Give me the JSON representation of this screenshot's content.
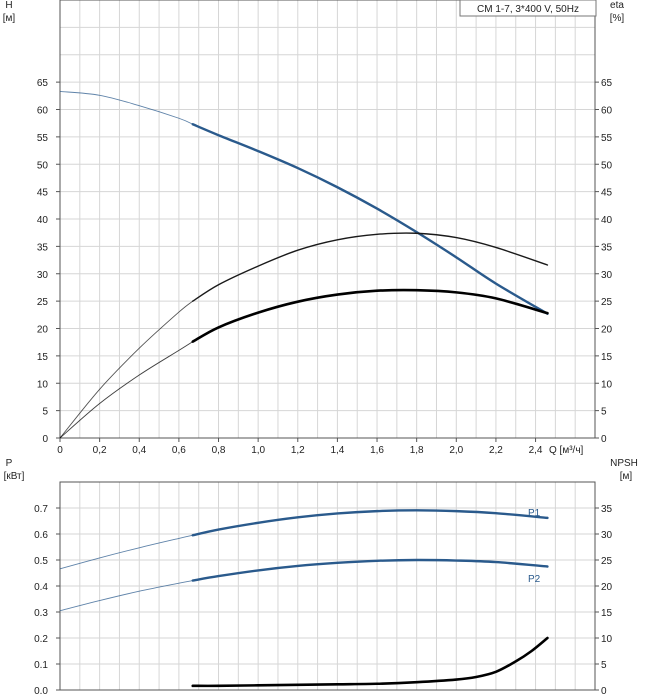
{
  "chart_data": [
    {
      "type": "line",
      "title": "CM 1-7, 3*400 V, 50Hz",
      "xlabel": "Q [м³/ч]",
      "ylabel": "H [м]",
      "y2label": "eta [%]",
      "ylabel_line1": "H",
      "ylabel_line2": "[м]",
      "y2label_line1": "eta",
      "y2label_line2": "[%]",
      "xlim": [
        0,
        2.7
      ],
      "ylim": [
        0,
        80
      ],
      "y2lim": [
        0,
        80
      ],
      "xticks": [
        "0",
        "0,2",
        "0,4",
        "0,6",
        "0,8",
        "1,0",
        "1,2",
        "1,4",
        "1,6",
        "1,8",
        "2,0",
        "2,2",
        "2,4"
      ],
      "yticks": [
        "0",
        "5",
        "10",
        "15",
        "20",
        "25",
        "30",
        "35",
        "40",
        "45",
        "50",
        "55",
        "60",
        "65"
      ],
      "y2ticks": [
        "0",
        "5",
        "10",
        "15",
        "20",
        "25",
        "30",
        "35",
        "40",
        "45",
        "50",
        "55",
        "60",
        "65"
      ],
      "grid": true,
      "series": [
        {
          "name": "H",
          "axis": "left",
          "color": "#2a5a8c",
          "x": [
            0,
            0.2,
            0.4,
            0.6,
            0.67,
            0.8,
            1.0,
            1.2,
            1.4,
            1.6,
            1.8,
            2.0,
            2.2,
            2.46
          ],
          "values": [
            63.3,
            62.6,
            60.7,
            58.4,
            57.3,
            55.3,
            52.4,
            49.3,
            45.8,
            41.9,
            37.6,
            33.0,
            28.2,
            22.7
          ],
          "operating_from": 0.67
        },
        {
          "name": "eta",
          "axis": "right",
          "color": "#1a1a1a",
          "x": [
            0,
            0.2,
            0.4,
            0.6,
            0.67,
            0.8,
            1.0,
            1.2,
            1.4,
            1.6,
            1.8,
            2.0,
            2.2,
            2.46
          ],
          "values": [
            0,
            8.9,
            16.4,
            23.0,
            25.0,
            28.0,
            31.4,
            34.3,
            36.2,
            37.2,
            37.4,
            36.6,
            34.8,
            31.6
          ],
          "operating_from": 0.67
        },
        {
          "name": "eta_total",
          "axis": "right",
          "color": "#000000",
          "x": [
            0,
            0.2,
            0.4,
            0.6,
            0.67,
            0.8,
            1.0,
            1.2,
            1.4,
            1.6,
            1.8,
            2.0,
            2.2,
            2.46
          ],
          "values": [
            0,
            6.3,
            11.5,
            16.0,
            17.6,
            20.2,
            22.9,
            24.9,
            26.2,
            26.9,
            27.0,
            26.6,
            25.5,
            22.8
          ],
          "operating_from": 0.67,
          "bold": true
        }
      ]
    },
    {
      "type": "line",
      "title": "",
      "xlabel": "",
      "ylabel": "P [кВт]",
      "y2label": "NPSH [м]",
      "ylabel_line1": "P",
      "ylabel_line2": "[кВт]",
      "y2label_line1": "NPSH",
      "y2label_line2": "[м]",
      "xlim": [
        0,
        2.7
      ],
      "ylim": [
        0,
        0.8
      ],
      "y2lim": [
        0,
        40
      ],
      "yticks": [
        "0.0",
        "0.1",
        "0.2",
        "0.3",
        "0.4",
        "0.5",
        "0.6",
        "0.7"
      ],
      "y2ticks": [
        "0",
        "5",
        "10",
        "15",
        "20",
        "25",
        "30",
        "35"
      ],
      "grid": true,
      "series": [
        {
          "name": "P1",
          "label": "P1",
          "axis": "left",
          "color": "#2a5a8c",
          "x": [
            0,
            0.2,
            0.4,
            0.6,
            0.67,
            0.8,
            1.0,
            1.2,
            1.4,
            1.6,
            1.8,
            2.0,
            2.2,
            2.46
          ],
          "values": [
            0.466,
            0.508,
            0.547,
            0.583,
            0.595,
            0.617,
            0.643,
            0.664,
            0.679,
            0.688,
            0.691,
            0.688,
            0.68,
            0.662
          ],
          "operating_from": 0.67
        },
        {
          "name": "P2",
          "label": "P2",
          "axis": "left",
          "color": "#2a5a8c",
          "x": [
            0,
            0.2,
            0.4,
            0.6,
            0.67,
            0.8,
            1.0,
            1.2,
            1.4,
            1.6,
            1.8,
            2.0,
            2.2,
            2.46
          ],
          "values": [
            0.305,
            0.344,
            0.38,
            0.411,
            0.421,
            0.438,
            0.46,
            0.477,
            0.489,
            0.497,
            0.5,
            0.498,
            0.492,
            0.475
          ],
          "operating_from": 0.67
        },
        {
          "name": "NPSH",
          "axis": "right",
          "color": "#000000",
          "x": [
            0.67,
            0.8,
            1.0,
            1.2,
            1.4,
            1.6,
            1.8,
            2.0,
            2.1,
            2.2,
            2.3,
            2.38,
            2.46
          ],
          "values": [
            0.8,
            0.8,
            0.9,
            1.0,
            1.1,
            1.2,
            1.5,
            2.0,
            2.5,
            3.5,
            5.5,
            7.5,
            10.0
          ],
          "operating_from": 0.67,
          "bold": true
        }
      ]
    }
  ]
}
